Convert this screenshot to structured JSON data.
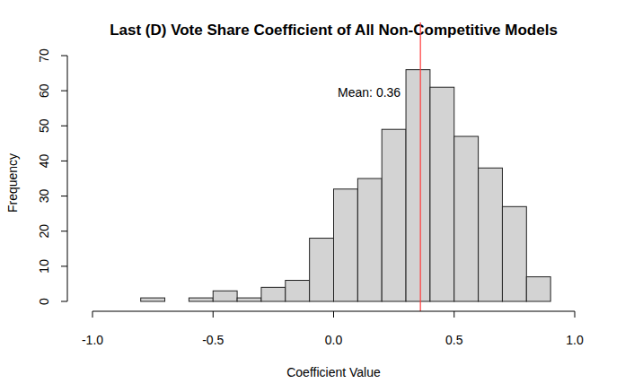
{
  "chart_data": {
    "type": "histogram",
    "title": "Last (D) Vote Share Coefficient of All Non-Competitive Models",
    "x_label": "Coefficient Value",
    "y_label": "Frequency",
    "bins": [
      -0.8,
      -0.7,
      -0.6,
      -0.5,
      -0.4,
      -0.3,
      -0.2,
      -0.1,
      0,
      0.1,
      0.2,
      0.3,
      0.4,
      0.5,
      0.6,
      0.7,
      0.8,
      0.9
    ],
    "values": [
      1,
      0,
      1,
      3,
      1,
      4,
      6,
      18,
      32,
      35,
      49,
      66,
      61,
      47,
      38,
      27,
      7
    ],
    "color": "#d3d3d3",
    "xlim": [
      -1,
      1
    ],
    "xticks": [
      {
        "value": -1,
        "label": "-1.0"
      },
      {
        "value": -0.5,
        "label": "-0.5"
      },
      {
        "value": 0,
        "label": "0.0"
      },
      {
        "value": 0.5,
        "label": "0.5"
      },
      {
        "value": 1,
        "label": "1.0"
      }
    ],
    "ylim": [
      0,
      70
    ],
    "yticks": [
      0,
      10,
      20,
      30,
      40,
      50,
      60,
      70
    ],
    "mean": {
      "value": 0.36,
      "label": "Mean: 0.36"
    }
  }
}
